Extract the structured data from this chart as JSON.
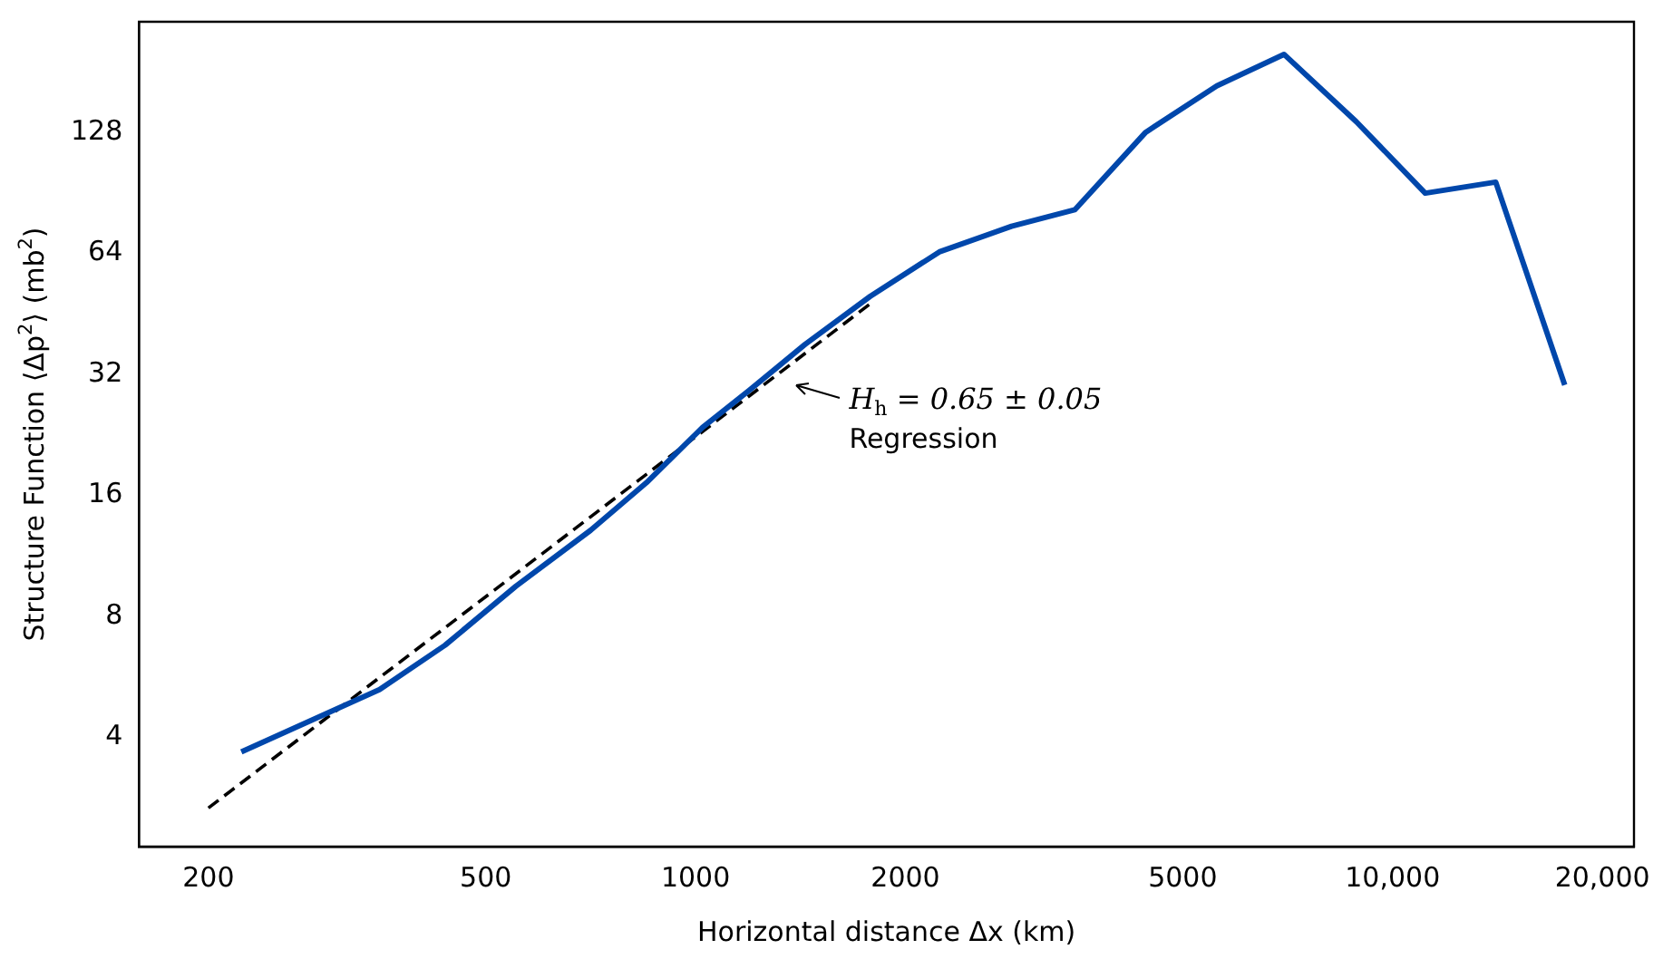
{
  "chart_data": {
    "type": "line",
    "xlabel": "Horizontal distance Δx (km)",
    "ylabel": "Structure Function ⟨Δp$^{2}$⟩ (mb$^{2}$)",
    "log": "xy",
    "grid": false,
    "legend": false,
    "marker": "none",
    "xlim": [
      159,
      22200
    ],
    "ylim": [
      2.14,
      241
    ],
    "xticks": [
      200,
      500,
      1000,
      2000,
      5000,
      {
        "value": 10000,
        "label": "10,000"
      },
      {
        "value": 20000,
        "label": "20,000"
      }
    ],
    "yticks": [
      4,
      8,
      16,
      32,
      64,
      128
    ],
    "series": [
      {
        "color": "#0047ab",
        "line_style": "solid",
        "x": [
          223,
          352,
          437,
          552,
          707,
          850,
          1023,
          1194,
          1436,
          1780,
          2237,
          2840,
          3500,
          4424,
          5595,
          6985,
          8870,
          11140,
          14060,
          17660
        ],
        "values": [
          3.68,
          5.26,
          6.78,
          9.5,
          13.1,
          17.2,
          23.6,
          29.2,
          38.0,
          50.0,
          64.5,
          74.7,
          82.1,
          128,
          167,
          200,
          136,
          90.3,
          96.2,
          30.1
        ]
      },
      {
        "type": "line",
        "color": "#000000",
        "line_style": "dashed",
        "x": [
          200,
          1780
        ],
        "values": [
          2.67,
          47.9
        ]
      }
    ],
    "annotations": [
      "H$_{h}$ = 0.65 ± 0.05",
      "Regression"
    ]
  }
}
